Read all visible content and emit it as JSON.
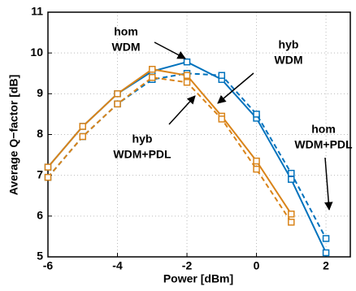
{
  "chart_data": {
    "type": "line",
    "xlabel": "Power [dBm]",
    "ylabel": "Average Q−factor [dB]",
    "xlim": [
      -6,
      2.7
    ],
    "ylim": [
      5,
      11
    ],
    "xticks": [
      -6,
      -4,
      -2,
      0,
      2
    ],
    "yticks": [
      5,
      6,
      7,
      8,
      9,
      10,
      11
    ],
    "grid": true,
    "series": [
      {
        "color": "#0072bd",
        "linestyle": "solid",
        "marker": "square",
        "x": [
          -6,
          -5,
          -4,
          -3,
          -2,
          -1,
          0,
          1,
          2
        ],
        "values": [
          7.2,
          8.2,
          9.0,
          9.55,
          9.78,
          9.35,
          8.4,
          6.9,
          5.1
        ]
      },
      {
        "color": "#0072bd",
        "linestyle": "dashed",
        "marker": "square",
        "x": [
          -6,
          -5,
          -4,
          -3,
          -2,
          -1,
          0,
          1,
          2
        ],
        "values": [
          6.95,
          7.95,
          8.75,
          9.35,
          9.5,
          9.45,
          8.5,
          7.05,
          5.45
        ]
      },
      {
        "color": "#d9841a",
        "linestyle": "solid",
        "marker": "square",
        "x": [
          -6,
          -5,
          -4,
          -3,
          -2,
          -1,
          0,
          1
        ],
        "values": [
          7.2,
          8.2,
          9.0,
          9.6,
          9.45,
          8.45,
          7.35,
          6.05
        ]
      },
      {
        "color": "#d9841a",
        "linestyle": "dashed",
        "marker": "square",
        "x": [
          -6,
          -5,
          -4,
          -3,
          -2,
          -1,
          0,
          1
        ],
        "values": [
          6.95,
          7.95,
          8.75,
          9.4,
          9.28,
          8.38,
          7.15,
          5.85
        ]
      }
    ],
    "annotations": [
      [
        "hom",
        "WDM"
      ],
      [
        "hyb",
        "WDM"
      ],
      [
        "hyb",
        "WDM+PDL"
      ],
      [
        "hom",
        "WDM+PDL"
      ]
    ]
  }
}
